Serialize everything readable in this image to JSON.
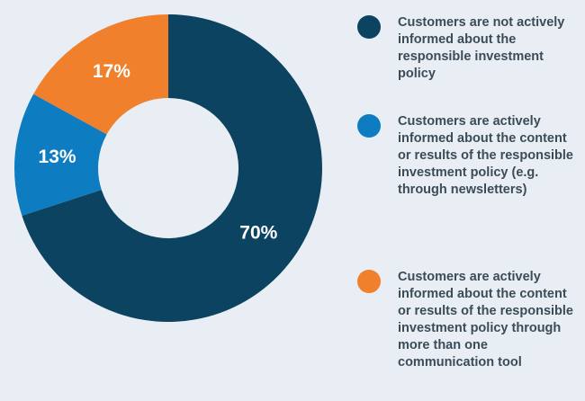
{
  "chart_data": {
    "type": "donut",
    "categories": [
      "Customers are not actively informed about the responsible investment policy",
      "Customers are actively informed about the content or results of the responsible investment policy (e.g. through newsletters)",
      "Customers are actively informed about the content or results of the responsible investment policy through more than one communication tool"
    ],
    "values": [
      70,
      13,
      17
    ],
    "value_labels": [
      "70%",
      "13%",
      "17%"
    ],
    "colors": [
      "#0b4361",
      "#0e7cc1",
      "#f0802b"
    ]
  }
}
